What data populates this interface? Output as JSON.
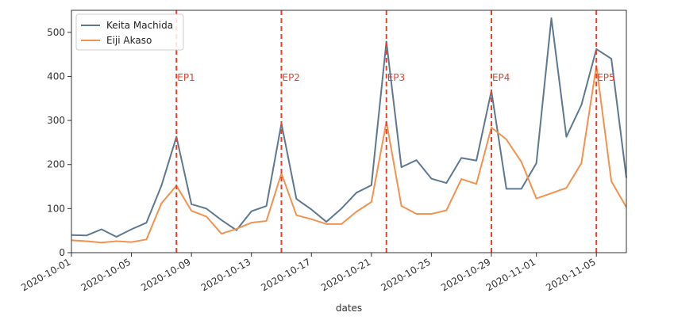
{
  "chart_data": {
    "type": "line",
    "xlabel": "dates",
    "ylabel": "",
    "title": "",
    "x_start": "2020-10-01",
    "x_end": "2020-11-07",
    "xlim": [
      "2020-10-01",
      "2020-11-07"
    ],
    "ylim": [
      0,
      550
    ],
    "yticks": [
      0,
      100,
      200,
      300,
      400,
      500
    ],
    "xticks": [
      "2020-10-01",
      "2020-10-05",
      "2020-10-09",
      "2020-10-13",
      "2020-10-17",
      "2020-10-21",
      "2020-10-25",
      "2020-10-29",
      "2020-11-01",
      "2020-11-05"
    ],
    "grid": false,
    "legend_position": "top-left",
    "series": [
      {
        "name": "Keita Machida",
        "color": "#5e7891",
        "values": [
          40,
          39,
          53,
          36,
          53,
          68,
          152,
          263,
          110,
          100,
          74,
          51,
          94,
          106,
          293,
          122,
          98,
          70,
          100,
          136,
          153,
          479,
          194,
          210,
          168,
          158,
          215,
          209,
          367,
          145,
          145,
          203,
          532,
          263,
          335,
          462,
          440,
          170
        ]
      },
      {
        "name": "Eiji Akaso",
        "color": "#f3924f",
        "values": [
          28,
          26,
          23,
          26,
          24,
          30,
          112,
          152,
          95,
          82,
          43,
          54,
          68,
          72,
          180,
          85,
          76,
          65,
          65,
          93,
          115,
          297,
          106,
          88,
          88,
          96,
          167,
          156,
          284,
          257,
          206,
          123,
          135,
          147,
          203,
          424,
          162,
          103
        ]
      }
    ],
    "annotations": [
      {
        "label": "EP1",
        "date": "2020-10-08"
      },
      {
        "label": "EP2",
        "date": "2020-10-15"
      },
      {
        "label": "EP3",
        "date": "2020-10-22"
      },
      {
        "label": "EP4",
        "date": "2020-10-29"
      },
      {
        "label": "EP5",
        "date": "2020-11-05"
      }
    ],
    "annotation_color": "#e8412b"
  }
}
